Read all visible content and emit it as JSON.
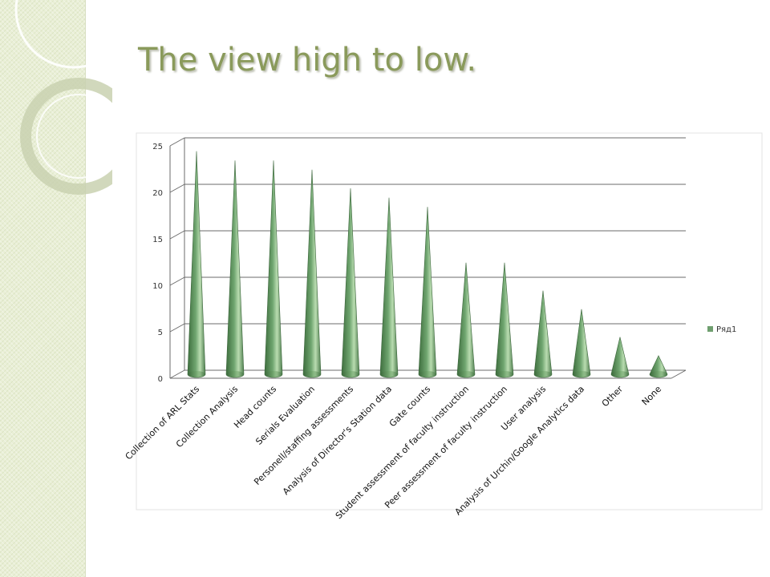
{
  "slide": {
    "title": "The view high to low."
  },
  "colors": {
    "side_panel": "#e9efd6",
    "title": "#8a9a5b",
    "cone_dark": "#3e6e3e",
    "cone_mid": "#6fa56f",
    "cone_light": "#b9dcb0",
    "gridline": "#6b6b6b"
  },
  "chart_data": {
    "type": "bar",
    "shape": "3d-cone",
    "title": "",
    "xlabel": "",
    "ylabel": "",
    "ylim": [
      0,
      25
    ],
    "y_ticks": [
      "0",
      "5",
      "10",
      "15",
      "20",
      "25"
    ],
    "grid": true,
    "legend_position": "right",
    "categories": [
      "Collection of ARL Stats",
      "Collection Analysis",
      "Head counts",
      "Serials Evaluation",
      "Personell/staffing assessments",
      "Analysis of Director's Station data",
      "Gate counts",
      "Student assessment of faculty instruction",
      "Peer assessment of faculty instruction",
      "User analysis",
      "Analysis of Urchin/Google Analytics data",
      "Other",
      "None"
    ],
    "series": [
      {
        "name": "Ряд1",
        "values": [
          24,
          23,
          23,
          22,
          20,
          19,
          18,
          12,
          12,
          9,
          7,
          4,
          2
        ]
      }
    ]
  }
}
